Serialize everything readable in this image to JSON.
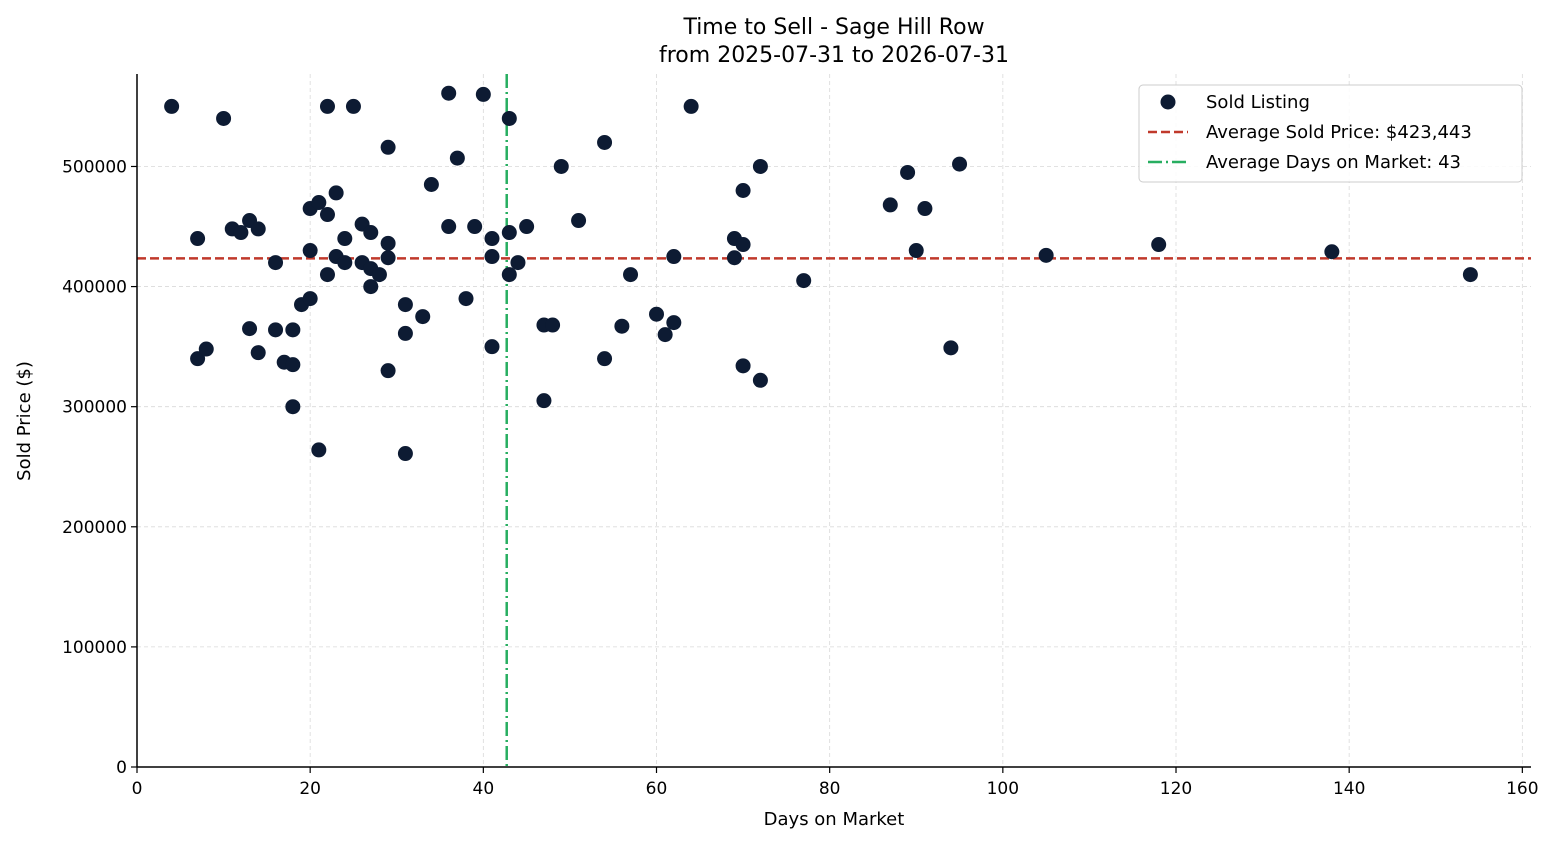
{
  "chart_data": {
    "type": "scatter",
    "title": "Time to Sell - Sage Hill Row",
    "subtitle": "from 2025-07-31 to 2026-07-31",
    "xlabel": "Days on Market",
    "ylabel": "Sold Price ($)",
    "xlim": [
      0,
      161
    ],
    "ylim": [
      0,
      577000
    ],
    "xticks": [
      0,
      20,
      40,
      60,
      80,
      100,
      120,
      140,
      160
    ],
    "yticks": [
      0,
      100000,
      200000,
      300000,
      400000,
      500000
    ],
    "grid": true,
    "legend_position": "top-right",
    "colors": {
      "points": "#0d1b33",
      "avg_price": "#c0392b",
      "avg_days": "#27ae60"
    },
    "series": [
      {
        "name": "Sold Listing",
        "points": [
          [
            4,
            550000
          ],
          [
            7,
            440000
          ],
          [
            7,
            340000
          ],
          [
            8,
            348000
          ],
          [
            10,
            540000
          ],
          [
            11,
            448000
          ],
          [
            12,
            445000
          ],
          [
            13,
            455000
          ],
          [
            13,
            365000
          ],
          [
            14,
            448000
          ],
          [
            14,
            345000
          ],
          [
            16,
            420000
          ],
          [
            16,
            364000
          ],
          [
            17,
            337000
          ],
          [
            18,
            364000
          ],
          [
            18,
            335000
          ],
          [
            18,
            300000
          ],
          [
            19,
            385000
          ],
          [
            20,
            465000
          ],
          [
            20,
            430000
          ],
          [
            20,
            390000
          ],
          [
            21,
            470000
          ],
          [
            21,
            264000
          ],
          [
            22,
            550000
          ],
          [
            22,
            460000
          ],
          [
            22,
            410000
          ],
          [
            23,
            478000
          ],
          [
            23,
            425000
          ],
          [
            24,
            440000
          ],
          [
            24,
            420000
          ],
          [
            25,
            550000
          ],
          [
            26,
            452000
          ],
          [
            26,
            420000
          ],
          [
            27,
            445000
          ],
          [
            27,
            415000
          ],
          [
            27,
            400000
          ],
          [
            28,
            410000
          ],
          [
            29,
            516000
          ],
          [
            29,
            436000
          ],
          [
            29,
            424000
          ],
          [
            29,
            330000
          ],
          [
            31,
            385000
          ],
          [
            31,
            361000
          ],
          [
            31,
            261000
          ],
          [
            33,
            375000
          ],
          [
            34,
            485000
          ],
          [
            36,
            561000
          ],
          [
            36,
            450000
          ],
          [
            37,
            507000
          ],
          [
            38,
            390000
          ],
          [
            39,
            450000
          ],
          [
            40,
            560000
          ],
          [
            41,
            440000
          ],
          [
            41,
            425000
          ],
          [
            41,
            350000
          ],
          [
            43,
            540000
          ],
          [
            43,
            445000
          ],
          [
            43,
            410000
          ],
          [
            44,
            420000
          ],
          [
            45,
            450000
          ],
          [
            47,
            368000
          ],
          [
            47,
            305000
          ],
          [
            48,
            368000
          ],
          [
            49,
            500000
          ],
          [
            51,
            455000
          ],
          [
            54,
            520000
          ],
          [
            54,
            340000
          ],
          [
            56,
            367000
          ],
          [
            57,
            410000
          ],
          [
            60,
            377000
          ],
          [
            61,
            360000
          ],
          [
            62,
            425000
          ],
          [
            62,
            370000
          ],
          [
            64,
            550000
          ],
          [
            69,
            440000
          ],
          [
            69,
            424000
          ],
          [
            70,
            480000
          ],
          [
            70,
            435000
          ],
          [
            70,
            334000
          ],
          [
            72,
            500000
          ],
          [
            72,
            322000
          ],
          [
            77,
            405000
          ],
          [
            87,
            468000
          ],
          [
            89,
            495000
          ],
          [
            90,
            430000
          ],
          [
            91,
            465000
          ],
          [
            94,
            349000
          ],
          [
            95,
            502000
          ],
          [
            105,
            426000
          ],
          [
            118,
            435000
          ],
          [
            138,
            429000
          ],
          [
            154,
            410000
          ]
        ]
      }
    ],
    "reference_lines": [
      {
        "name": "Average Sold Price: $423,443",
        "axis": "y",
        "value": 423443,
        "style": "dashed"
      },
      {
        "name": "Average Days on Market: 43",
        "axis": "x",
        "value": 42.7,
        "style": "dashdot"
      }
    ]
  }
}
